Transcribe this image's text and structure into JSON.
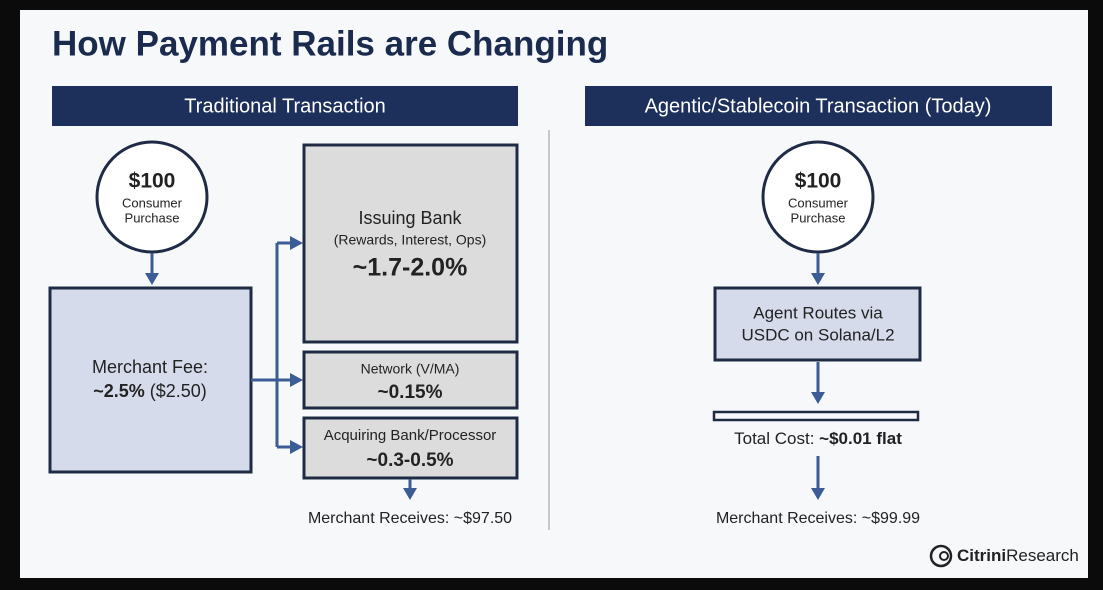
{
  "title": "How Payment Rails are Changing",
  "left": {
    "header": "Traditional Transaction",
    "source": {
      "amount": "$100",
      "label_lines": [
        "Consumer",
        "Purchase"
      ]
    },
    "merchant_fee": {
      "label": "Merchant Fee:",
      "rate": "~2.5%",
      "amount": "($2.50)"
    },
    "issuing_bank": {
      "name": "Issuing Bank",
      "detail": "(Rewards, Interest, Ops)",
      "rate": "~1.7-2.0%"
    },
    "network": {
      "name": "Network (V/MA)",
      "rate": "~0.15%"
    },
    "acquiring": {
      "name": "Acquiring Bank/Processor",
      "rate": "~0.3-0.5%"
    },
    "result": "Merchant Receives: ~$97.50"
  },
  "right": {
    "header": "Agentic/Stablecoin Transaction (Today)",
    "source": {
      "amount": "$100",
      "label_lines": [
        "Consumer",
        "Purchase"
      ]
    },
    "agent_lines": [
      "Agent Routes via",
      "USDC on Solana/L2"
    ],
    "cost": {
      "label": "Total Cost:",
      "value": "~$0.01 flat"
    },
    "result": "Merchant Receives: ~$99.99"
  },
  "logo": {
    "bold": "Citrini",
    "rest": "Research"
  }
}
